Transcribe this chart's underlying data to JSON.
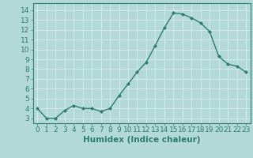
{
  "x": [
    0,
    1,
    2,
    3,
    4,
    5,
    6,
    7,
    8,
    9,
    10,
    11,
    12,
    13,
    14,
    15,
    16,
    17,
    18,
    19,
    20,
    21,
    22,
    23
  ],
  "y": [
    4.0,
    3.0,
    3.0,
    3.8,
    4.3,
    4.0,
    4.0,
    3.7,
    4.0,
    5.3,
    6.5,
    7.7,
    8.7,
    10.4,
    12.2,
    13.7,
    13.6,
    13.2,
    12.7,
    11.8,
    9.3,
    8.5,
    8.3,
    7.7
  ],
  "line_color": "#2d7d6e",
  "marker": "D",
  "marker_size": 2.0,
  "line_width": 1.0,
  "xlabel": "Humidex (Indice chaleur)",
  "ylim": [
    2.5,
    14.7
  ],
  "xlim": [
    -0.5,
    23.5
  ],
  "yticks": [
    3,
    4,
    5,
    6,
    7,
    8,
    9,
    10,
    11,
    12,
    13,
    14
  ],
  "xticks": [
    0,
    1,
    2,
    3,
    4,
    5,
    6,
    7,
    8,
    9,
    10,
    11,
    12,
    13,
    14,
    15,
    16,
    17,
    18,
    19,
    20,
    21,
    22,
    23
  ],
  "background_color": "#b2d8d8",
  "grid_color": "#d4e8e8",
  "tick_color": "#2d7d6e",
  "label_color": "#2d7d6e",
  "xlabel_fontsize": 7.5,
  "tick_fontsize": 6.5
}
